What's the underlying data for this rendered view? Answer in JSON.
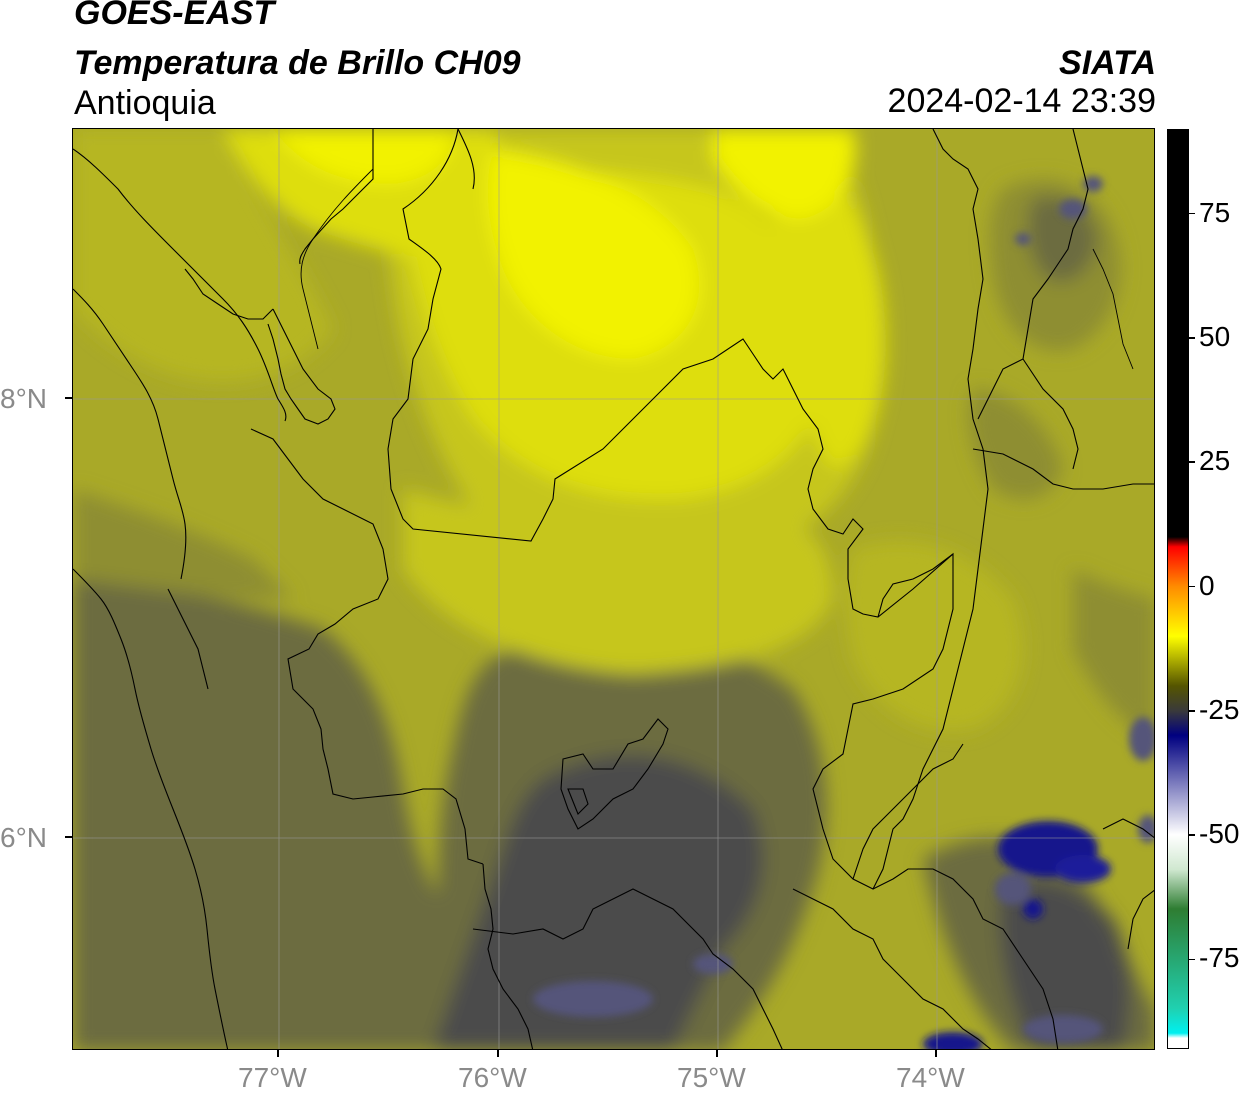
{
  "header": {
    "satellite": "GOES-EAST",
    "product": "Temperatura de Brillo CH09",
    "region": "Antioquia",
    "agency": "SIATA",
    "datetime": "2024-02-14 23:39"
  },
  "map": {
    "lon_labels": [
      "77°W",
      "76°W",
      "75°W",
      "74°W"
    ],
    "lat_labels": [
      "8°N",
      "6°N"
    ],
    "lon_range": [
      -77.94,
      -73.02
    ],
    "lat_range": [
      5.06,
      9.26
    ],
    "gridlines": true
  },
  "colorbar": {
    "labels": [
      "75",
      "50",
      "25",
      "0",
      "-25",
      "-50",
      "-75"
    ],
    "values": [
      75,
      50,
      25,
      0,
      -25,
      -50,
      -75
    ],
    "range": [
      -93,
      92
    ],
    "stops": [
      {
        "value": 92,
        "color": "#000000"
      },
      {
        "value": 10,
        "color": "#000000"
      },
      {
        "value": 8,
        "color": "#ff0000"
      },
      {
        "value": 0,
        "color": "#ff8c00"
      },
      {
        "value": -10,
        "color": "#ffff00"
      },
      {
        "value": -20,
        "color": "#555500"
      },
      {
        "value": -25,
        "color": "#3a3a3a"
      },
      {
        "value": -30,
        "color": "#000080"
      },
      {
        "value": -40,
        "color": "#8080c0"
      },
      {
        "value": -50,
        "color": "#ffffff"
      },
      {
        "value": -57,
        "color": "#d0e8d0"
      },
      {
        "value": -65,
        "color": "#2e7d32"
      },
      {
        "value": -85,
        "color": "#20d0b0"
      },
      {
        "value": -90,
        "color": "#00f0f0"
      },
      {
        "value": -91,
        "color": "#ffffff"
      },
      {
        "value": -93,
        "color": "#ffffff"
      }
    ]
  },
  "field_colors": {
    "bright_yellow": "#f2f200",
    "yellow": "#dede10",
    "olive_light": "#c6c61c",
    "olive": "#a9a928",
    "olive_dark": "#8e8e32",
    "olive_gray": "#6c6c40",
    "dark_gray": "#4c4c4c",
    "navy": "#14148c",
    "slate": "#55557a"
  }
}
